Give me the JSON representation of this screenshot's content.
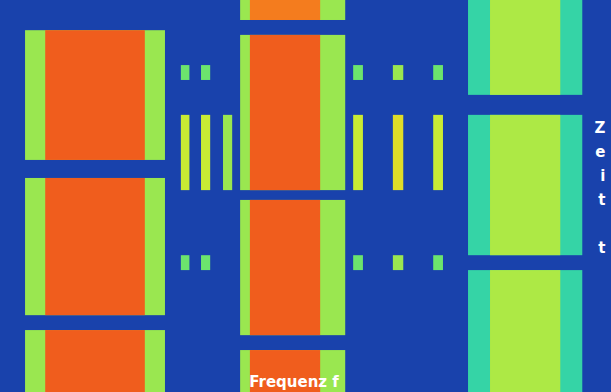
{
  "chart_data": {
    "type": "spectrogram",
    "x_label": "Frequenz f",
    "y_label": "Zeit t",
    "xlim": [
      0,
      100
    ],
    "ylim": [
      0,
      100
    ],
    "xticks": [],
    "yticks": [],
    "tick_labels": false,
    "zlim": [
      0,
      100
    ],
    "noise_level": 12,
    "signals": [
      {
        "f0": 4.1,
        "f1": 27.0,
        "t0": 7.7,
        "t1": 40.8,
        "level": 60
      },
      {
        "f0": 7.4,
        "f1": 23.7,
        "t0": 7.7,
        "t1": 40.8,
        "level": 92
      },
      {
        "f0": 4.1,
        "f1": 27.0,
        "t0": 45.4,
        "t1": 80.4,
        "level": 60
      },
      {
        "f0": 7.4,
        "f1": 23.7,
        "t0": 45.4,
        "t1": 80.4,
        "level": 92
      },
      {
        "f0": 4.1,
        "f1": 27.0,
        "t0": 84.2,
        "t1": 100,
        "level": 60
      },
      {
        "f0": 7.4,
        "f1": 23.7,
        "t0": 84.2,
        "t1": 100,
        "level": 92
      },
      {
        "f0": 39.3,
        "f1": 56.5,
        "t0": 0,
        "t1": 5.1,
        "level": 60
      },
      {
        "f0": 40.9,
        "f1": 52.4,
        "t0": 0,
        "t1": 5.1,
        "level": 88
      },
      {
        "f0": 39.3,
        "f1": 56.5,
        "t0": 8.9,
        "t1": 48.5,
        "level": 60
      },
      {
        "f0": 40.9,
        "f1": 52.4,
        "t0": 8.9,
        "t1": 48.5,
        "level": 92
      },
      {
        "f0": 39.3,
        "f1": 56.5,
        "t0": 51.0,
        "t1": 85.5,
        "level": 60
      },
      {
        "f0": 40.9,
        "f1": 52.4,
        "t0": 51.0,
        "t1": 85.5,
        "level": 92
      },
      {
        "f0": 39.3,
        "f1": 56.5,
        "t0": 89.3,
        "t1": 100,
        "level": 60
      },
      {
        "f0": 40.9,
        "f1": 52.4,
        "t0": 89.3,
        "t1": 100,
        "level": 92
      },
      {
        "f0": 76.6,
        "f1": 95.3,
        "t0": 0,
        "t1": 24.2,
        "level": 45
      },
      {
        "f0": 80.2,
        "f1": 91.7,
        "t0": 0,
        "t1": 24.2,
        "level": 62
      },
      {
        "f0": 76.6,
        "f1": 95.3,
        "t0": 29.3,
        "t1": 65.1,
        "level": 45
      },
      {
        "f0": 80.2,
        "f1": 91.7,
        "t0": 29.3,
        "t1": 65.1,
        "level": 62
      },
      {
        "f0": 76.6,
        "f1": 95.3,
        "t0": 68.9,
        "t1": 100,
        "level": 45
      },
      {
        "f0": 80.2,
        "f1": 91.7,
        "t0": 68.9,
        "t1": 100,
        "level": 62
      },
      {
        "f0": 29.6,
        "f1": 31.0,
        "t0": 16.6,
        "t1": 20.4,
        "level": 55
      },
      {
        "f0": 32.9,
        "f1": 34.4,
        "t0": 16.6,
        "t1": 20.4,
        "level": 55
      },
      {
        "f0": 29.6,
        "f1": 31.0,
        "t0": 29.3,
        "t1": 48.5,
        "level": 65
      },
      {
        "f0": 32.9,
        "f1": 34.4,
        "t0": 29.3,
        "t1": 48.5,
        "level": 65
      },
      {
        "f0": 36.5,
        "f1": 38.0,
        "t0": 29.3,
        "t1": 48.5,
        "level": 60
      },
      {
        "f0": 29.6,
        "f1": 31.0,
        "t0": 65.1,
        "t1": 68.9,
        "level": 55
      },
      {
        "f0": 32.9,
        "f1": 34.4,
        "t0": 65.1,
        "t1": 68.9,
        "level": 55
      },
      {
        "f0": 57.8,
        "f1": 59.4,
        "t0": 16.6,
        "t1": 20.4,
        "level": 55
      },
      {
        "f0": 64.3,
        "f1": 66.0,
        "t0": 16.6,
        "t1": 20.4,
        "level": 60
      },
      {
        "f0": 70.9,
        "f1": 72.5,
        "t0": 16.6,
        "t1": 20.4,
        "level": 55
      },
      {
        "f0": 57.8,
        "f1": 59.4,
        "t0": 29.3,
        "t1": 48.5,
        "level": 65
      },
      {
        "f0": 64.3,
        "f1": 66.0,
        "t0": 29.3,
        "t1": 48.5,
        "level": 70
      },
      {
        "f0": 70.9,
        "f1": 72.5,
        "t0": 29.3,
        "t1": 48.5,
        "level": 65
      },
      {
        "f0": 57.8,
        "f1": 59.4,
        "t0": 65.1,
        "t1": 68.9,
        "level": 55
      },
      {
        "f0": 64.3,
        "f1": 66.0,
        "t0": 65.1,
        "t1": 68.9,
        "level": 60
      },
      {
        "f0": 70.9,
        "f1": 72.5,
        "t0": 65.1,
        "t1": 68.9,
        "level": 55
      }
    ]
  }
}
